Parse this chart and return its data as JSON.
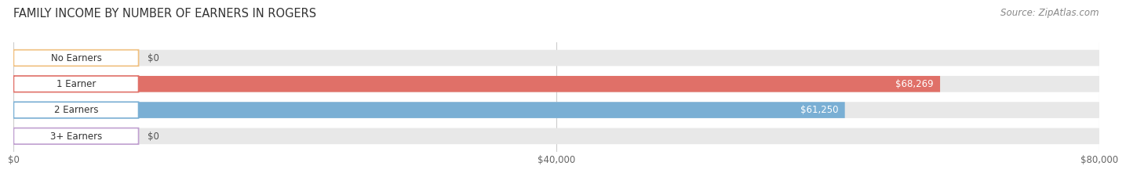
{
  "title": "FAMILY INCOME BY NUMBER OF EARNERS IN ROGERS",
  "source": "Source: ZipAtlas.com",
  "categories": [
    "No Earners",
    "1 Earner",
    "2 Earners",
    "3+ Earners"
  ],
  "values": [
    0,
    68269,
    61250,
    0
  ],
  "value_labels": [
    "$0",
    "$68,269",
    "$61,250",
    "$0"
  ],
  "bar_colors": [
    "#f0c080",
    "#e07068",
    "#7aafd4",
    "#c0a0d0"
  ],
  "bar_bg_color": "#e8e8e8",
  "xlim": [
    0,
    80000
  ],
  "xticks": [
    0,
    40000,
    80000
  ],
  "xticklabels": [
    "$0",
    "$40,000",
    "$80,000"
  ],
  "bar_height": 0.62,
  "figure_bg": "#ffffff",
  "title_fontsize": 10.5,
  "source_fontsize": 8.5
}
